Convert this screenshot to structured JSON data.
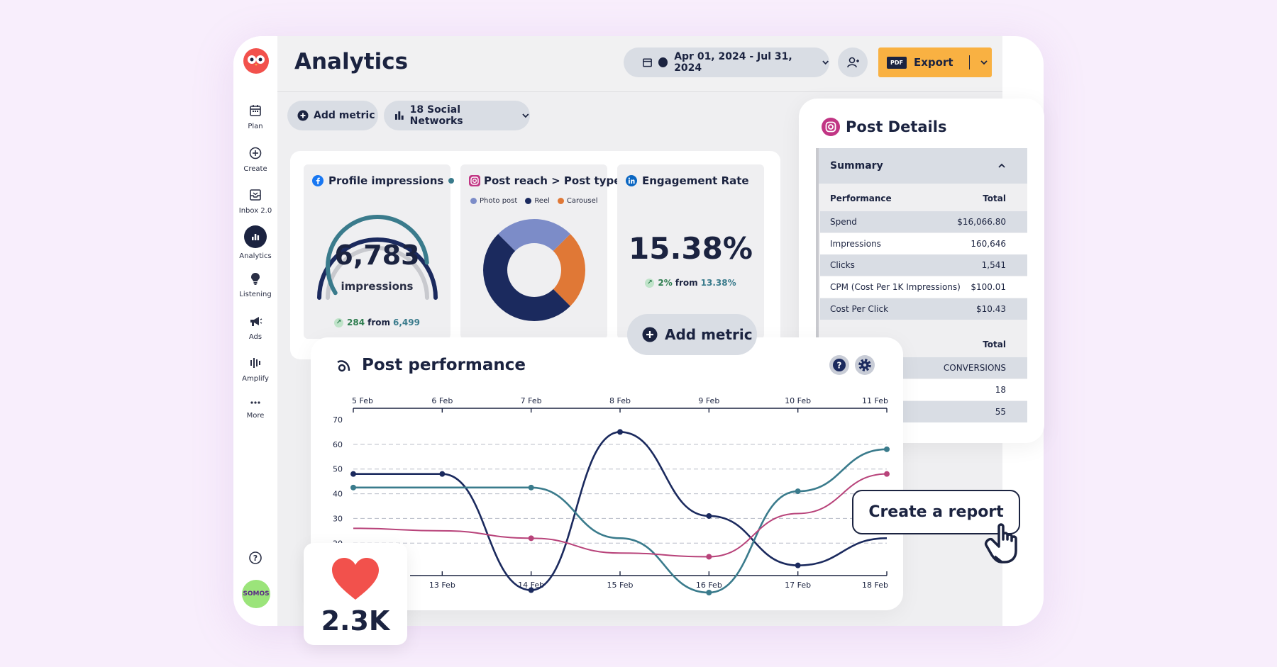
{
  "app": {
    "title": "Analytics"
  },
  "sidebar": {
    "items": [
      {
        "label": "Plan",
        "icon": "calendar-icon"
      },
      {
        "label": "Create",
        "icon": "plus-circle-icon"
      },
      {
        "label": "Inbox 2.0",
        "icon": "inbox-icon"
      },
      {
        "label": "Analytics",
        "icon": "bar-chart-icon",
        "active": true
      },
      {
        "label": "Listening",
        "icon": "lightbulb-icon"
      },
      {
        "label": "Ads",
        "icon": "megaphone-icon"
      },
      {
        "label": "Amplify",
        "icon": "amplify-icon"
      },
      {
        "label": "More",
        "icon": "more-dots-icon"
      }
    ],
    "avatar_text": "SOMOS"
  },
  "header": {
    "date_range": "Apr 01, 2024 - Jul 31, 2024",
    "export_badge": "PDF",
    "export_label": "Export"
  },
  "toolbar": {
    "add_metric": "Add metric",
    "networks": "18 Social Networks"
  },
  "cards": {
    "impressions": {
      "title": "Profile impressions",
      "value": "6,783",
      "unit": "impressions",
      "delta": "284",
      "from_label": "from",
      "from_value": "6,499",
      "gauge_fraction": 0.85
    },
    "reach": {
      "title": "Post reach > Post type",
      "legend": [
        "Photo post",
        "Reel",
        "Carousel"
      ],
      "colors": [
        "#7c8cc8",
        "#1b2a5e",
        "#e07836"
      ],
      "slices": [
        25,
        50,
        25
      ]
    },
    "engagement": {
      "title": "Engagement Rate",
      "value": "15.38%",
      "delta": "2%",
      "from_label": "from",
      "from_value": "13.38%"
    }
  },
  "floating_add_metric": "Add metric",
  "post_details": {
    "title": "Post Details",
    "summary_label": "Summary",
    "table1_header": [
      "Performance",
      "Total"
    ],
    "table1_rows": [
      [
        "Spend",
        "$16,066.80"
      ],
      [
        "Impressions",
        "160,646"
      ],
      [
        "Clicks",
        "1,541"
      ],
      [
        "CPM (Cost Per 1K Impressions)",
        "$100.01"
      ],
      [
        "Cost Per Click",
        "$10.43"
      ]
    ],
    "table2_header": [
      "",
      "Total"
    ],
    "table2_rows": [
      [
        "",
        "CONVERSIONS"
      ],
      [
        "",
        "18"
      ],
      [
        "",
        "55"
      ]
    ]
  },
  "performance": {
    "title": "Post performance"
  },
  "chart_data": {
    "type": "line",
    "top_x": [
      "5 Feb",
      "6 Feb",
      "7 Feb",
      "8 Feb",
      "9 Feb",
      "10 Feb",
      "11 Feb"
    ],
    "bottom_x": [
      "13 Feb",
      "14 Feb",
      "15 Feb",
      "16 Feb",
      "17 Feb",
      "18 Feb"
    ],
    "y_ticks": [
      70,
      60,
      50,
      40,
      30,
      20
    ],
    "ylim": [
      0,
      70
    ],
    "series": [
      {
        "color": "#1b2a5e",
        "points": [
          [
            0,
            48
          ],
          [
            1,
            48
          ],
          [
            2,
            1
          ],
          [
            3,
            65
          ],
          [
            4,
            31
          ],
          [
            5,
            11
          ],
          [
            6,
            22
          ]
        ],
        "dots": [
          0,
          1,
          2,
          3,
          4,
          5
        ]
      },
      {
        "color": "#3a7b8c",
        "points": [
          [
            0,
            42.5
          ],
          [
            1,
            42.5
          ],
          [
            2,
            42.5
          ],
          [
            3,
            22
          ],
          [
            4,
            0
          ],
          [
            5,
            41
          ],
          [
            6,
            58
          ]
        ],
        "dots": [
          0,
          2,
          4,
          5,
          6
        ]
      },
      {
        "color": "#b8437a",
        "points": [
          [
            0,
            26
          ],
          [
            1,
            25
          ],
          [
            2,
            22
          ],
          [
            3,
            16
          ],
          [
            4,
            14.5
          ],
          [
            5,
            32
          ],
          [
            6,
            48
          ]
        ],
        "dots": [
          2,
          4,
          6
        ]
      }
    ]
  },
  "like_card": {
    "value": "2.3K"
  },
  "report_button": "Create a report"
}
